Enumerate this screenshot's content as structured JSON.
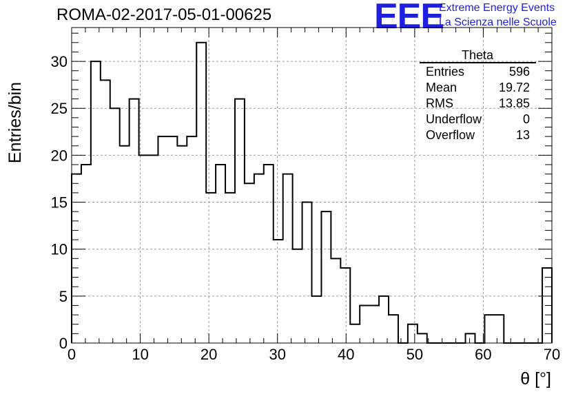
{
  "header": {
    "run_title": "ROMA-02-2017-05-01-00625",
    "logo_text": "EEE",
    "logo_line1": "Extreme Energy Events",
    "logo_line2": "La Scienza nelle Scuole",
    "logo_color": "#1f1fe0"
  },
  "chart_data": {
    "type": "histogram",
    "xlabel": "θ [°]",
    "ylabel": "Entries/bin",
    "xlim": [
      0,
      70
    ],
    "ylim": [
      0,
      33.6
    ],
    "bin_width": 1.4,
    "xticks": [
      0,
      10,
      20,
      30,
      40,
      50,
      60,
      70
    ],
    "yticks": [
      0,
      5,
      10,
      15,
      20,
      25,
      30
    ],
    "grid": true,
    "counts": [
      18,
      19,
      30,
      28,
      25,
      21,
      26,
      20,
      20,
      22,
      22,
      21,
      22,
      32,
      16,
      19,
      16,
      26,
      17,
      18,
      19,
      11,
      18,
      10,
      15,
      5,
      14,
      9,
      8,
      2,
      4,
      4,
      5,
      3,
      0,
      2,
      1,
      0,
      0,
      0,
      0,
      1,
      0,
      3,
      3,
      0,
      0,
      0,
      0,
      8
    ],
    "stats": {
      "title": "Theta",
      "rows": [
        {
          "label": "Entries",
          "value": "596"
        },
        {
          "label": "Mean",
          "value": "19.72"
        },
        {
          "label": "RMS",
          "value": "13.85"
        },
        {
          "label": "Underflow",
          "value": "0"
        },
        {
          "label": "Overflow",
          "value": "13"
        }
      ]
    }
  }
}
